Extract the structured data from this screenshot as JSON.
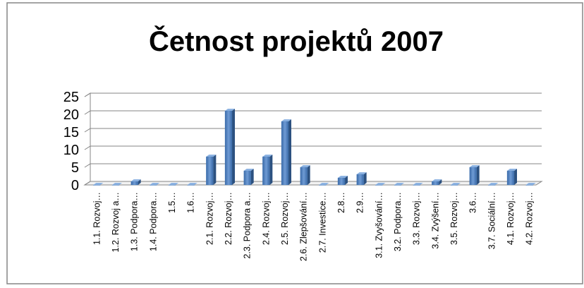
{
  "chart_data": {
    "type": "bar3d",
    "title": "Četnost projektů 2007",
    "categories": [
      "1.1. Rozvoj…",
      "1.2. Rozvoj a…",
      "1.3. Podpora…",
      "1.4. Podpora…",
      "1.5…",
      "1.6…",
      "2.1. Rozvoj…",
      "2.2. Rozvoj…",
      "2.3. Podpora a…",
      "2.4. Rozvoj…",
      "2.5. Rozvoj…",
      "2.6. Zlepšování…",
      "2.7. Investice…",
      "2.8…",
      "2.9…",
      "3.1. Zvyšování…",
      "3.2. Podpora…",
      "3.3. Rozvoj…",
      "3.4. Zvýšení…",
      "3.5. Rozvoj…",
      "3.6…",
      "3.7. Sociální…",
      "4.1. Rozvoj…",
      "4.2. Rozvoj…"
    ],
    "values": [
      0,
      0,
      1,
      0,
      0,
      0,
      8,
      21,
      4,
      8,
      18,
      5,
      0,
      2,
      3,
      0,
      0,
      0,
      1,
      0,
      5,
      0,
      4,
      0
    ],
    "color": "#4f81bd",
    "ylim": [
      0,
      25
    ],
    "yticks": [
      0,
      5,
      10,
      15,
      20,
      25
    ],
    "grid": true
  }
}
